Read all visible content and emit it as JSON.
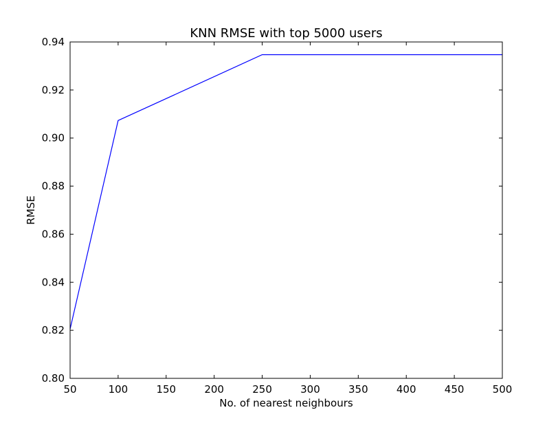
{
  "chart_data": {
    "type": "line",
    "title": "KNN RMSE with top 5000 users",
    "xlabel": "No. of nearest neighbours",
    "ylabel": "RMSE",
    "xlim": [
      50,
      500
    ],
    "ylim": [
      0.8,
      0.94
    ],
    "xticks": [
      "50",
      "100",
      "150",
      "200",
      "250",
      "300",
      "350",
      "400",
      "450",
      "500"
    ],
    "yticks": [
      "0.80",
      "0.82",
      "0.84",
      "0.86",
      "0.88",
      "0.90",
      "0.92",
      "0.94"
    ],
    "grid": false,
    "series": [
      {
        "color": "#0000ff",
        "x": [
          50,
          100,
          250,
          500
        ],
        "y": [
          0.8205,
          0.9073,
          0.9347,
          0.9347
        ]
      }
    ]
  }
}
